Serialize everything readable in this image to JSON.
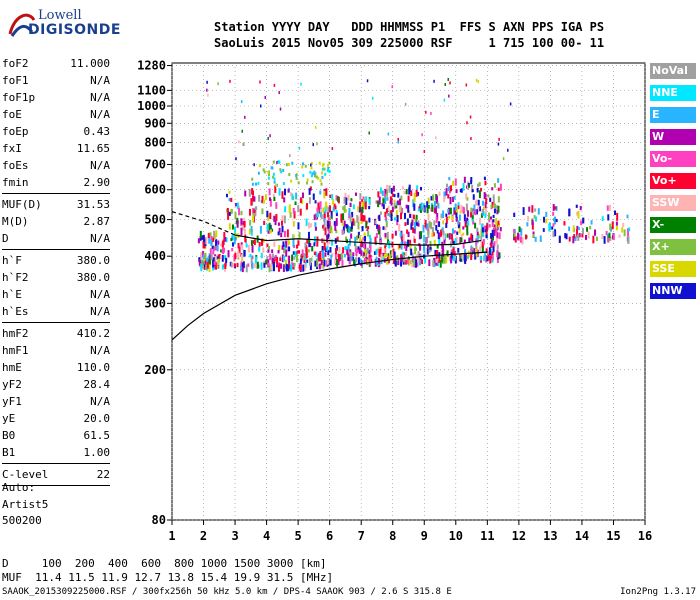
{
  "logo": {
    "line1": "Lowell",
    "line2": "DIGISONDE"
  },
  "header": {
    "line1": "Station YYYY DAY   DDD HHMMSS P1  FFS S AXN PPS IGA PS",
    "line2": "SaoLuis 2015 Nov05 309 225000 RSF     1 715 100 00- 11"
  },
  "params": [
    {
      "k": "foF2",
      "v": "11.000"
    },
    {
      "k": "foF1",
      "v": "N/A"
    },
    {
      "k": "foF1p",
      "v": "N/A"
    },
    {
      "k": "foE",
      "v": "N/A"
    },
    {
      "k": "foEp",
      "v": "0.43"
    },
    {
      "k": "fxI",
      "v": "11.65"
    },
    {
      "k": "foEs",
      "v": "N/A"
    },
    {
      "k": "fmin",
      "v": "2.90"
    },
    {
      "sep": true
    },
    {
      "k": "MUF(D)",
      "v": "31.53"
    },
    {
      "k": "M(D)",
      "v": "2.87"
    },
    {
      "k": "D",
      "v": "N/A"
    },
    {
      "sep": true
    },
    {
      "k": "h`F",
      "v": "380.0"
    },
    {
      "k": "h`F2",
      "v": "380.0"
    },
    {
      "k": "h`E",
      "v": "N/A"
    },
    {
      "k": "h`Es",
      "v": "N/A"
    },
    {
      "sep": true
    },
    {
      "k": "hmF2",
      "v": "410.2"
    },
    {
      "k": "hmF1",
      "v": "N/A"
    },
    {
      "k": "hmE",
      "v": "110.0"
    },
    {
      "k": "yF2",
      "v": "28.4"
    },
    {
      "k": "yF1",
      "v": "N/A"
    },
    {
      "k": "yE",
      "v": "20.0"
    },
    {
      "k": "B0",
      "v": "61.5"
    },
    {
      "k": "B1",
      "v": "1.00"
    },
    {
      "sep": true
    },
    {
      "k": "C-level",
      "v": "22"
    },
    {
      "sep": true
    }
  ],
  "auto": {
    "l1": "Auto:",
    "l2": "Artist5",
    "l3": "500200"
  },
  "bottom_table": {
    "row1": "D     100  200  400  600  800 1000 1500 3000 [km]",
    "row2": "MUF  11.4 11.5 11.9 12.7 13.8 15.4 19.9 31.5 [MHz]"
  },
  "footer": "SAAOK_2015309225000.RSF / 300fx256h 50 kHz 5.0 km / DPS-4 SAAOK 903 / 2.6 S 315.8 E",
  "version": "Ion2Png 1.3.17",
  "legend": [
    {
      "label": "NoVal",
      "color": "#a0a0a0"
    },
    {
      "label": "NNE",
      "color": "#00e8ff"
    },
    {
      "label": "E",
      "color": "#28b4ff"
    },
    {
      "label": "W",
      "color": "#b000b0"
    },
    {
      "label": "Vo-",
      "color": "#ff40c0"
    },
    {
      "label": "Vo+",
      "color": "#ff0030"
    },
    {
      "label": "SSW",
      "color": "#ffb4b4"
    },
    {
      "label": "X-",
      "color": "#008000"
    },
    {
      "label": "X+",
      "color": "#80c040"
    },
    {
      "label": "SSE",
      "color": "#d8d800"
    },
    {
      "label": "NNW",
      "color": "#1010d0"
    }
  ],
  "chart_data": {
    "type": "scatter",
    "xlabel": "",
    "ylabel": "",
    "xlim": [
      1,
      16
    ],
    "x_ticks": [
      1,
      2,
      3,
      4,
      5,
      6,
      7,
      8,
      9,
      10,
      11,
      12,
      13,
      14,
      15,
      16
    ],
    "y_scale": "log",
    "ylim": [
      80,
      1300
    ],
    "y_ticks": [
      80,
      200,
      300,
      400,
      500,
      600,
      700,
      800,
      900,
      1000,
      1100,
      1280
    ],
    "series": [
      {
        "name": "ordinary_trace_echo_clusters",
        "clusters": [
          {
            "f": [
              1.8,
              2.6
            ],
            "h": [
              380,
              470
            ]
          },
          {
            "f": [
              2.6,
              5.9
            ],
            "h": [
              380,
              620
            ]
          },
          {
            "f": [
              5.8,
              7.3
            ],
            "h": [
              390,
              590
            ]
          },
          {
            "f": [
              7.4,
              9.5
            ],
            "h": [
              390,
              620
            ]
          },
          {
            "f": [
              9.5,
              11.4
            ],
            "h": [
              400,
              650
            ]
          },
          {
            "f": [
              11.8,
              15.5
            ],
            "h": [
              450,
              550
            ]
          }
        ]
      },
      {
        "name": "spread_echo_band",
        "f": [
          3.5,
          6.0
        ],
        "h": [
          620,
          720
        ]
      },
      {
        "name": "profile_curve",
        "points": [
          {
            "f": 1.0,
            "h": 240
          },
          {
            "f": 1.5,
            "h": 262
          },
          {
            "f": 2.0,
            "h": 282
          },
          {
            "f": 3.0,
            "h": 315
          },
          {
            "f": 4.0,
            "h": 338
          },
          {
            "f": 5.0,
            "h": 356
          },
          {
            "f": 6.0,
            "h": 370
          },
          {
            "f": 7.0,
            "h": 382
          },
          {
            "f": 8.0,
            "h": 392
          },
          {
            "f": 9.0,
            "h": 400
          },
          {
            "f": 10.0,
            "h": 405
          },
          {
            "f": 11.0,
            "h": 410
          }
        ]
      },
      {
        "name": "virtual_height_trace",
        "points": [
          {
            "f": 1.0,
            "h": 525
          },
          {
            "f": 2.0,
            "h": 495
          },
          {
            "f": 3.0,
            "h": 455
          },
          {
            "f": 4.0,
            "h": 440
          },
          {
            "f": 5.0,
            "h": 445
          },
          {
            "f": 6.0,
            "h": 440
          },
          {
            "f": 7.0,
            "h": 435
          },
          {
            "f": 8.0,
            "h": 430
          },
          {
            "f": 9.0,
            "h": 428
          },
          {
            "f": 10.0,
            "h": 430
          },
          {
            "f": 10.8,
            "h": 440
          }
        ]
      }
    ]
  }
}
